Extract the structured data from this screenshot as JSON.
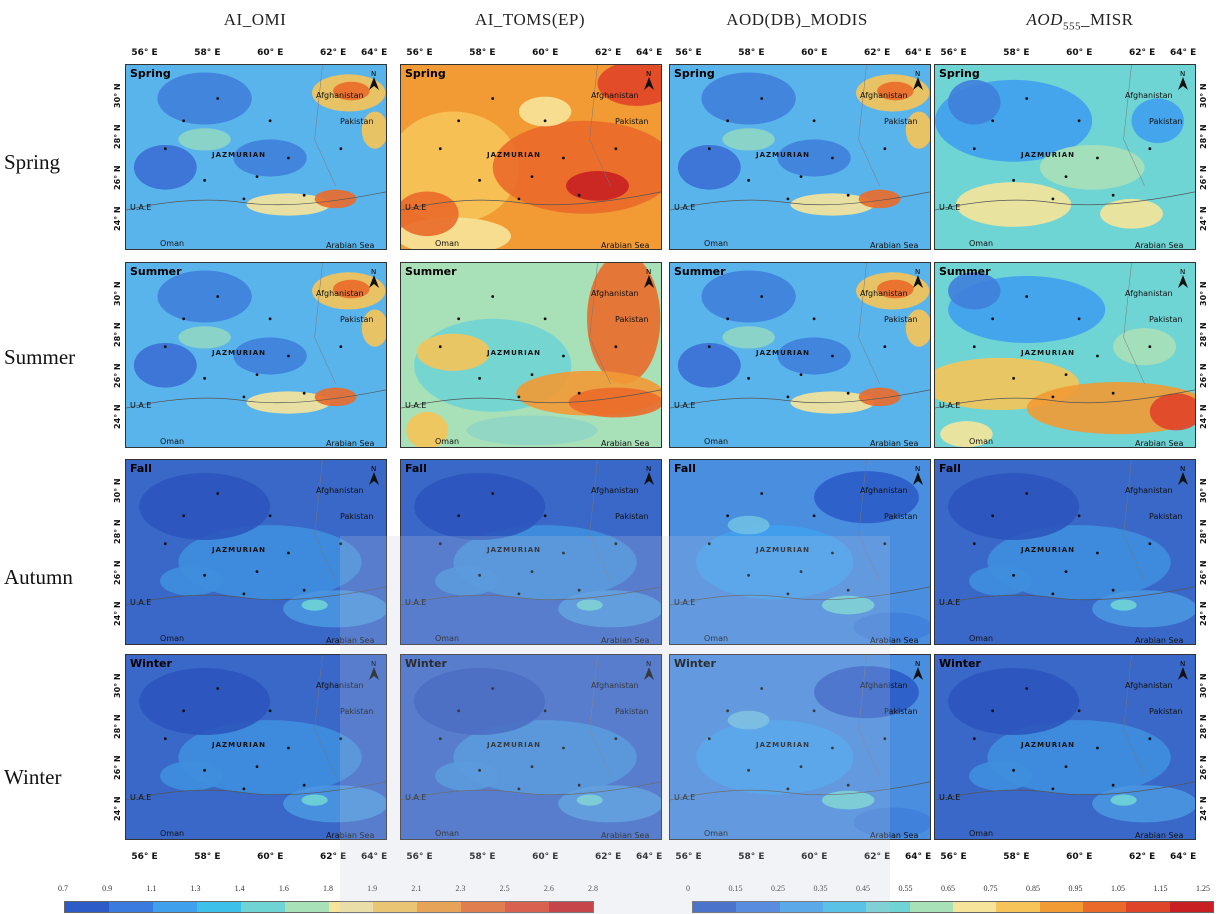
{
  "columns": [
    {
      "title": "AI_OMI"
    },
    {
      "title": "AI_TOMS(EP)"
    },
    {
      "title": "AOD(DB)_MODIS"
    },
    {
      "title_main": "AOD",
      "title_sub": "555",
      "title_rest": "_MISR"
    }
  ],
  "rows": [
    {
      "label": "Spring",
      "tag": "Spring"
    },
    {
      "label": "Summer",
      "tag": "Summer"
    },
    {
      "label": "Autumn",
      "tag": "Fall"
    },
    {
      "label": "Winter",
      "tag": "Winter"
    }
  ],
  "longitude_ticks": [
    "56° E",
    "58° E",
    "60° E",
    "62° E",
    "64° E"
  ],
  "latitude_ticks": [
    "30° N",
    "28° N",
    "26° N",
    "24° N"
  ],
  "place_labels": {
    "afghanistan": "Afghanistan",
    "pakistan": "Pakistan",
    "jazmurian": "JAZMURIAN",
    "uae": "U.A.E",
    "oman": "Oman",
    "arabian_sea": "Arabian Sea",
    "north": "N"
  },
  "colorbar_ai": {
    "ticks": [
      "0.7",
      "0.9",
      "1.1",
      "1.3",
      "1.4",
      "1.6",
      "1.8",
      "1.9",
      "2.1",
      "2.3",
      "2.5",
      "2.6",
      "2.8"
    ],
    "colors": [
      "#2c5cc8",
      "#3a7be0",
      "#3fa0ee",
      "#3dc0ea",
      "#6fd4d4",
      "#a8e0b8",
      "#f6e49a",
      "#f6c458",
      "#f29a34",
      "#ea6a2a",
      "#e04428",
      "#c82022"
    ]
  },
  "colorbar_aod": {
    "ticks": [
      "0",
      "0.15",
      "0.25",
      "0.35",
      "0.45",
      "0.55",
      "0.65",
      "0.75",
      "0.85",
      "0.95",
      "1.05",
      "1.15",
      "1.25"
    ],
    "colors": [
      "#2c5cc8",
      "#3a7be0",
      "#3fa0ee",
      "#3dc0ea",
      "#6fd4d4",
      "#a8e0b8",
      "#f6e49a",
      "#f6c458",
      "#f29a34",
      "#ea6a2a",
      "#e04428",
      "#c82022"
    ]
  },
  "panel_styles": [
    [
      "mid",
      "hot",
      "mid",
      "cool"
    ],
    [
      "mid",
      "hotright",
      "mid",
      "hotsouth"
    ],
    [
      "cold",
      "cold",
      "coldmid",
      "cold"
    ],
    [
      "cold",
      "cold",
      "coldmid",
      "cold"
    ]
  ]
}
